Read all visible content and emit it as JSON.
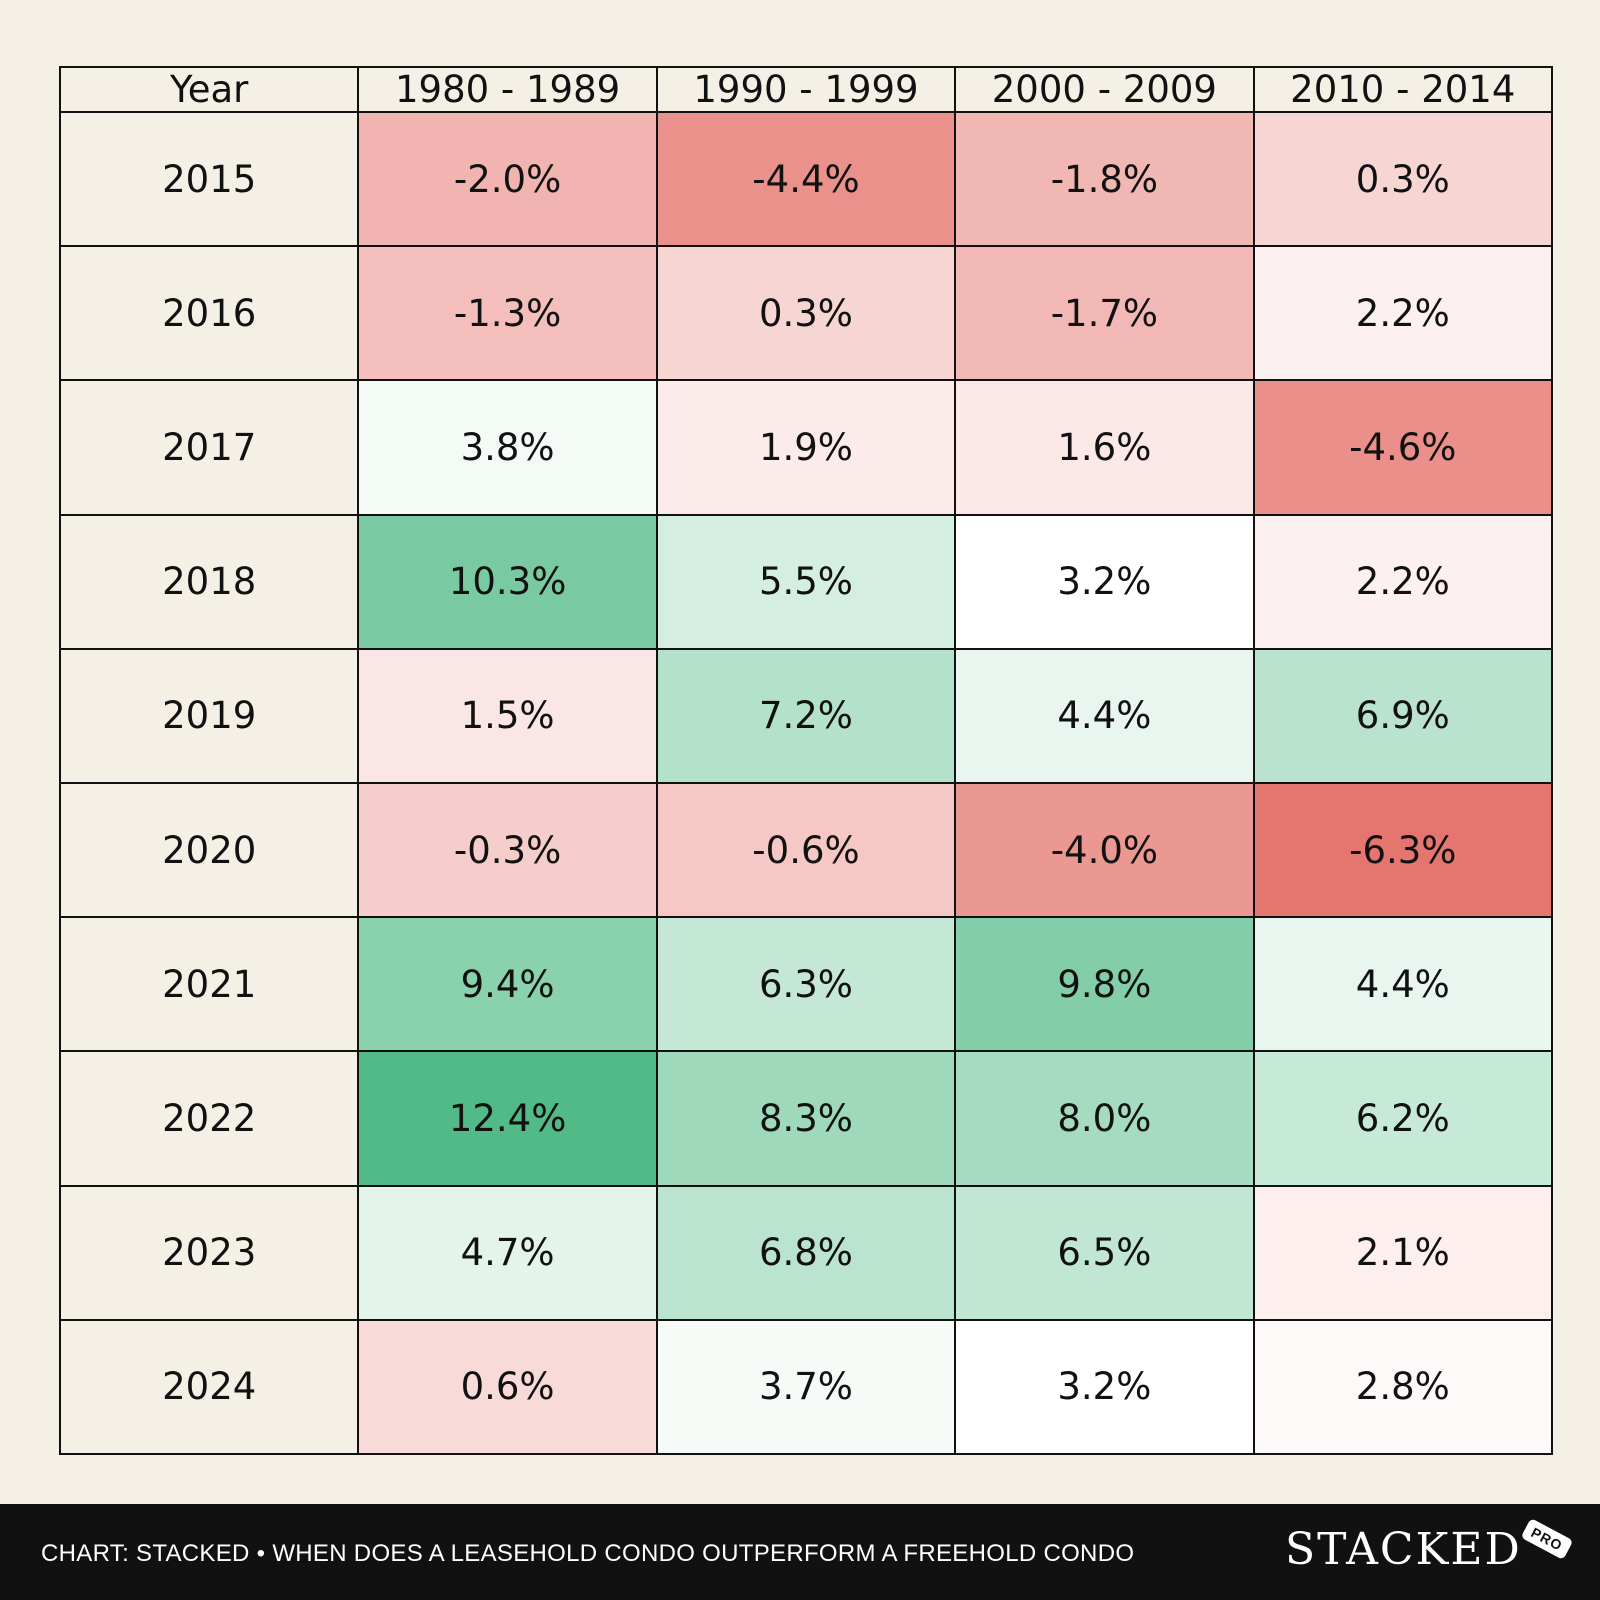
{
  "chart_data": {
    "type": "heatmap",
    "corner_label": "Year",
    "columns": [
      "1980 - 1989",
      "1990 - 1999",
      "2000 - 2009",
      "2010 - 2014"
    ],
    "rows": [
      "2015",
      "2016",
      "2017",
      "2018",
      "2019",
      "2020",
      "2021",
      "2022",
      "2023",
      "2024"
    ],
    "values": [
      [
        -2.0,
        -4.4,
        -1.8,
        0.3
      ],
      [
        -1.3,
        0.3,
        -1.7,
        2.2
      ],
      [
        3.8,
        1.9,
        1.6,
        -4.6
      ],
      [
        10.3,
        5.5,
        3.2,
        2.2
      ],
      [
        1.5,
        7.2,
        4.4,
        6.9
      ],
      [
        -0.3,
        -0.6,
        -4.0,
        -6.3
      ],
      [
        9.4,
        6.3,
        9.8,
        4.4
      ],
      [
        12.4,
        8.3,
        8.0,
        6.2
      ],
      [
        4.7,
        6.8,
        6.5,
        2.1
      ],
      [
        0.6,
        3.7,
        3.2,
        2.8
      ]
    ],
    "labels": [
      [
        "-2.0%",
        "-4.4%",
        "-1.8%",
        "0.3%"
      ],
      [
        "-1.3%",
        "0.3%",
        "-1.7%",
        "2.2%"
      ],
      [
        "3.8%",
        "1.9%",
        "1.6%",
        "-4.6%"
      ],
      [
        "10.3%",
        "5.5%",
        "3.2%",
        "2.2%"
      ],
      [
        "1.5%",
        "7.2%",
        "4.4%",
        "6.9%"
      ],
      [
        "-0.3%",
        "-0.6%",
        "-4.0%",
        "-6.3%"
      ],
      [
        "9.4%",
        "6.3%",
        "9.8%",
        "4.4%"
      ],
      [
        "12.4%",
        "8.3%",
        "8.0%",
        "6.2%"
      ],
      [
        "4.7%",
        "6.8%",
        "6.5%",
        "2.1%"
      ],
      [
        "0.6%",
        "3.7%",
        "3.2%",
        "2.8%"
      ]
    ],
    "midpoint": 3.2,
    "color_low": "#e5766f",
    "color_mid": "#ffffff",
    "color_high": "#52ba86",
    "value_min": -6.3,
    "value_max": 12.4
  },
  "footer": {
    "caption": "CHART: STACKED • WHEN DOES A LEASEHOLD CONDO OUTPERFORM A FREEHOLD CONDO",
    "brand": "STACKED",
    "badge": "PRO"
  }
}
